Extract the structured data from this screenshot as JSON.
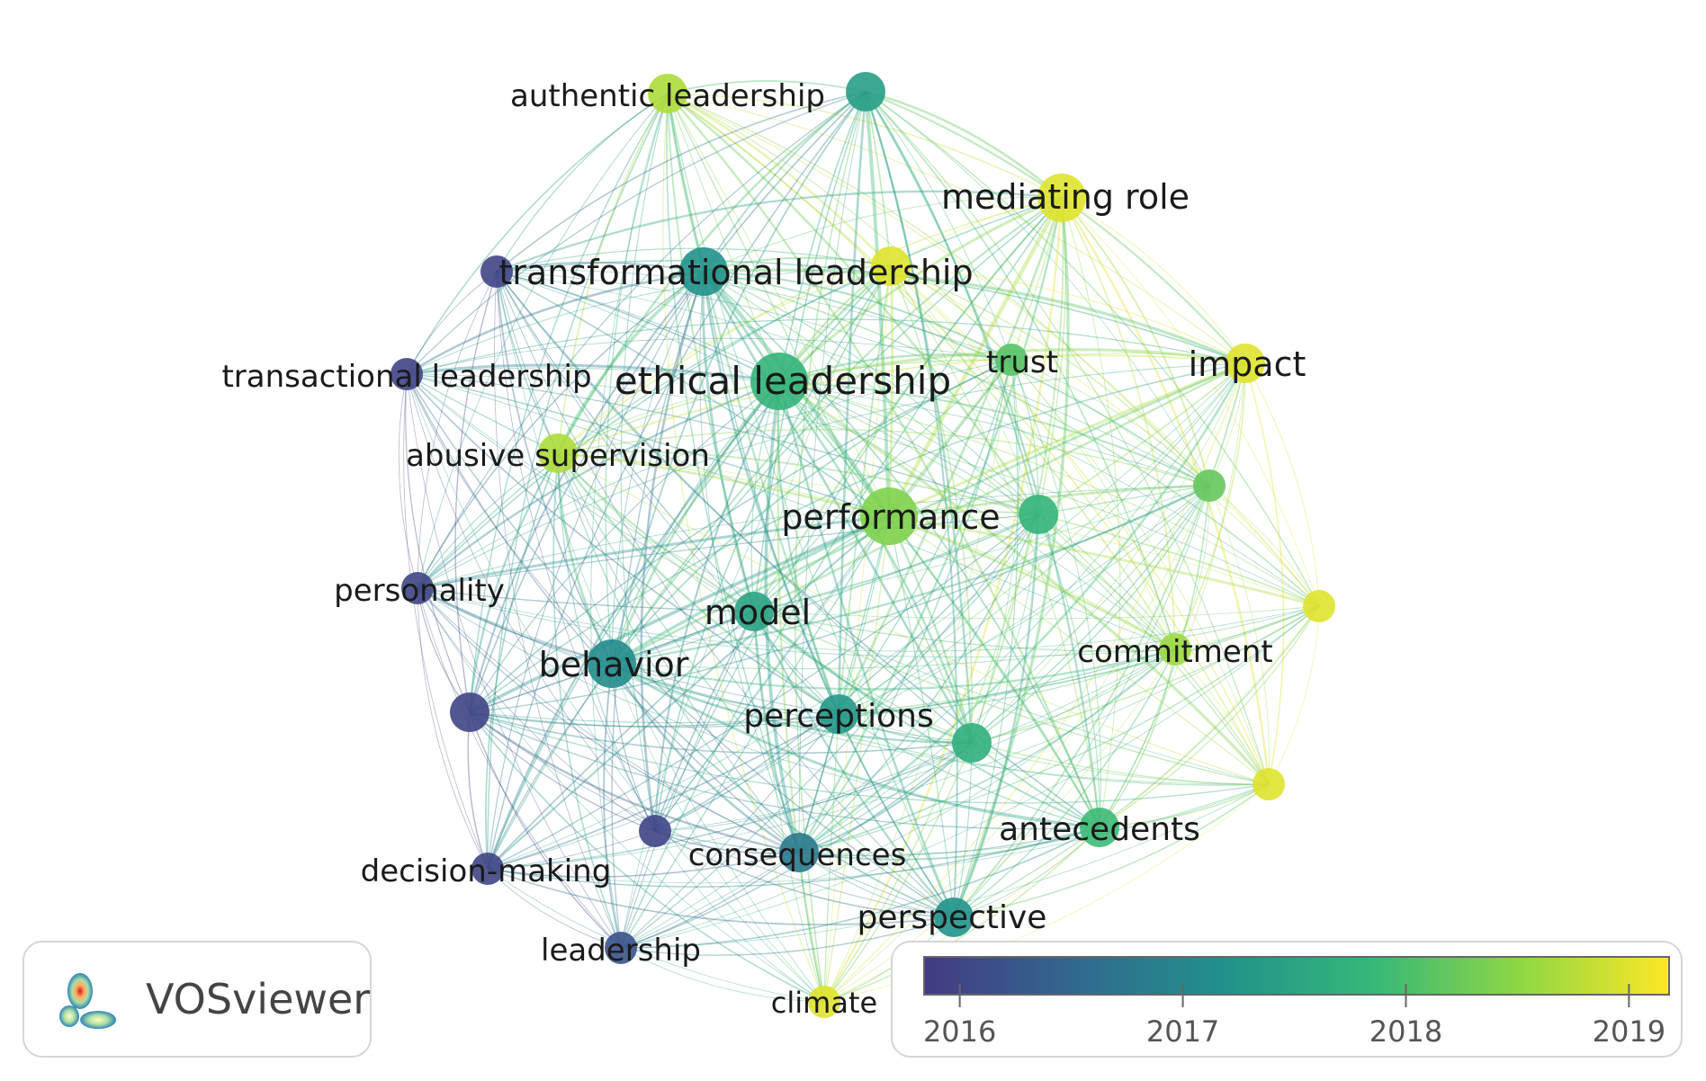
{
  "network": {
    "nodes": [
      {
        "id": "authentic-leadership",
        "label": "authentic leadership",
        "year": 2018.7,
        "weight": 3
      },
      {
        "id": "top-unlabeled",
        "label": "",
        "year": 2017.4,
        "weight": 3
      },
      {
        "id": "mediating-role",
        "label": "mediating role",
        "year": 2019.0,
        "weight": 4
      },
      {
        "id": "transformational-leadership",
        "label": "transformational leadership",
        "year": 2017.2,
        "weight": 4
      },
      {
        "id": "transformational-yellow",
        "label": "",
        "year": 2019.0,
        "weight": 3
      },
      {
        "id": "tl-purple",
        "label": "",
        "year": 2016.0,
        "weight": 2
      },
      {
        "id": "transactional-leadership",
        "label": "transactional leadership",
        "year": 2016.0,
        "weight": 2
      },
      {
        "id": "ethical-leadership",
        "label": "ethical leadership",
        "year": 2017.8,
        "weight": 5
      },
      {
        "id": "trust",
        "label": "trust",
        "year": 2018.1,
        "weight": 2
      },
      {
        "id": "impact",
        "label": "impact",
        "year": 2019.0,
        "weight": 3
      },
      {
        "id": "abusive-supervision",
        "label": "abusive supervision",
        "year": 2018.7,
        "weight": 3
      },
      {
        "id": "performance",
        "label": "performance",
        "year": 2018.4,
        "weight": 5
      },
      {
        "id": "right-green-1",
        "label": "",
        "year": 2017.8,
        "weight": 3
      },
      {
        "id": "right-green-2",
        "label": "",
        "year": 2018.2,
        "weight": 2
      },
      {
        "id": "personality",
        "label": "personality",
        "year": 2016.0,
        "weight": 2
      },
      {
        "id": "model",
        "label": "model",
        "year": 2017.5,
        "weight": 3
      },
      {
        "id": "far-right-yellow",
        "label": "",
        "year": 2019.0,
        "weight": 2
      },
      {
        "id": "commitment",
        "label": "commitment",
        "year": 2018.6,
        "weight": 2
      },
      {
        "id": "behavior",
        "label": "behavior",
        "year": 2017.1,
        "weight": 4
      },
      {
        "id": "left-purple",
        "label": "",
        "year": 2016.0,
        "weight": 3
      },
      {
        "id": "perceptions",
        "label": "perceptions",
        "year": 2017.3,
        "weight": 3
      },
      {
        "id": "perceptions-right",
        "label": "",
        "year": 2017.7,
        "weight": 3
      },
      {
        "id": "bottom-right-yellow",
        "label": "",
        "year": 2019.0,
        "weight": 2
      },
      {
        "id": "antecedents",
        "label": "antecedents",
        "year": 2017.9,
        "weight": 3
      },
      {
        "id": "bottom-purple",
        "label": "",
        "year": 2016.0,
        "weight": 2
      },
      {
        "id": "consequences",
        "label": "consequences",
        "year": 2016.8,
        "weight": 3
      },
      {
        "id": "decision-making",
        "label": "decision-making",
        "year": 2016.0,
        "weight": 2
      },
      {
        "id": "perspective",
        "label": "perspective",
        "year": 2017.2,
        "weight": 3
      },
      {
        "id": "leadership",
        "label": "leadership",
        "year": 2016.2,
        "weight": 2
      },
      {
        "id": "climate",
        "label": "climate",
        "year": 2019.0,
        "weight": 2
      }
    ]
  },
  "logo": {
    "text": "VOSviewer"
  },
  "legend": {
    "ticks": [
      "2016",
      "2017",
      "2018",
      "2019"
    ],
    "min_year": 2015.84,
    "max_year": 2019.18,
    "colors": [
      "#443a83",
      "#31688e",
      "#21918c",
      "#35b779",
      "#8fd744",
      "#fde725"
    ]
  }
}
